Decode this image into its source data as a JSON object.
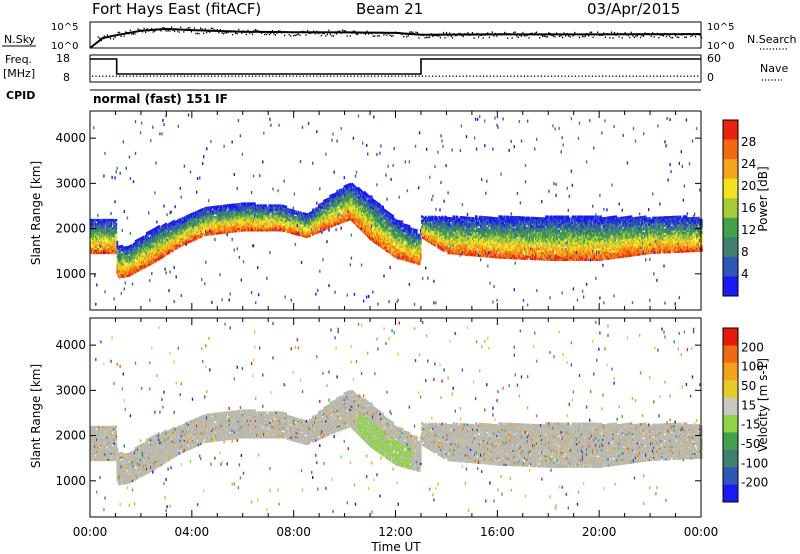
{
  "header": {
    "station": "Fort Hays East (fitACF)",
    "beam": "Beam 21",
    "date": "03/Apr/2015"
  },
  "top_panels": {
    "nsky_label": "N.Sky",
    "nsky_ticks": [
      "10^5",
      "10^0"
    ],
    "nsearch_label": "N.Search",
    "freq_label_1": "Freq.",
    "freq_label_2": "[MHz]",
    "freq_ticks": [
      "18",
      "8"
    ],
    "nave_label": "Nave",
    "nave_ticks": [
      "60",
      "0"
    ],
    "cpid_label": "CPID",
    "cpid_text": "normal (fast) 151 IF"
  },
  "colors": {
    "power_scale": [
      "#1a1af2",
      "#2f57b5",
      "#3f7f6f",
      "#44a04a",
      "#a8c93a",
      "#f4e21f",
      "#f5a31a",
      "#f06a13",
      "#e8220e"
    ],
    "velocity_scale": [
      "#1a1af2",
      "#2f57b5",
      "#3f7f6f",
      "#44a04a",
      "#8fd34a",
      "#c8c8c0",
      "#e6cc28",
      "#f2a21c",
      "#ef6a14",
      "#e41a0e"
    ],
    "ground_scatter": "#b9b9b0"
  },
  "chart_data": [
    {
      "type": "heatmap",
      "title": "",
      "xlabel": "Time UT",
      "ylabel": "Slant Range [km]",
      "x_ticks": [
        "00:00",
        "04:00",
        "08:00",
        "12:00",
        "16:00",
        "20:00",
        "00:00"
      ],
      "y_ticks": [
        "1000",
        "2000",
        "3000",
        "4000"
      ],
      "xlim": [
        0,
        24
      ],
      "ylim": [
        200,
        4600
      ],
      "colorbar": {
        "label": "Power [dB]",
        "ticks": [
          "4",
          "8",
          "12",
          "16",
          "20",
          "24",
          "28"
        ],
        "range": [
          0,
          30
        ]
      },
      "band_profile": {
        "hours": [
          0,
          0.6,
          1.0,
          1.05,
          1.5,
          2.5,
          3.5,
          4.5,
          6.0,
          7.5,
          8.5,
          9.5,
          10.2,
          11.0,
          12.0,
          12.95,
          13.0,
          14.0,
          16.0,
          18.0,
          20.0,
          22.0,
          24.0
        ],
        "lower_edge_km": [
          1450,
          1450,
          1450,
          900,
          950,
          1250,
          1600,
          1850,
          1950,
          1950,
          1800,
          2050,
          2200,
          1750,
          1350,
          1200,
          1800,
          1450,
          1350,
          1300,
          1300,
          1450,
          1500
        ],
        "upper_edge_km": [
          2200,
          2200,
          2200,
          1600,
          1600,
          2000,
          2200,
          2450,
          2550,
          2500,
          2300,
          2750,
          3000,
          2700,
          2200,
          1900,
          2250,
          2250,
          2250,
          2250,
          2250,
          2250,
          2250
        ]
      }
    },
    {
      "type": "heatmap",
      "title": "",
      "xlabel": "Time UT",
      "ylabel": "Slant Range [km]",
      "x_ticks": [
        "00:00",
        "04:00",
        "08:00",
        "12:00",
        "16:00",
        "20:00",
        "00:00"
      ],
      "y_ticks": [
        "1000",
        "2000",
        "3000",
        "4000"
      ],
      "xlim": [
        0,
        24
      ],
      "ylim": [
        200,
        4600
      ],
      "colorbar": {
        "label": "Velocity [m s-1]",
        "ticks": [
          "200",
          "100",
          "50",
          "15",
          "-15",
          "-50",
          "-100",
          "-200"
        ],
        "range": [
          -250,
          250
        ]
      }
    },
    {
      "type": "line",
      "title": "",
      "series": [
        {
          "name": "N.Sky",
          "x": [
            0,
            0.5,
            1,
            2,
            3,
            4,
            6,
            8,
            10,
            12,
            13,
            16,
            20,
            24
          ],
          "y": [
            0,
            300,
            1500,
            20000,
            60000,
            30000,
            12000,
            9000,
            8000,
            6000,
            2000,
            2500,
            2500,
            3000
          ]
        },
        {
          "name": "Freq.",
          "x": [
            0,
            1.05,
            1.05,
            13.0,
            13.0,
            24
          ],
          "y": [
            18,
            18,
            10.5,
            10.5,
            18,
            18
          ]
        },
        {
          "name": "Nave",
          "x": [
            0,
            24
          ],
          "y": [
            13,
            13
          ]
        }
      ]
    }
  ]
}
